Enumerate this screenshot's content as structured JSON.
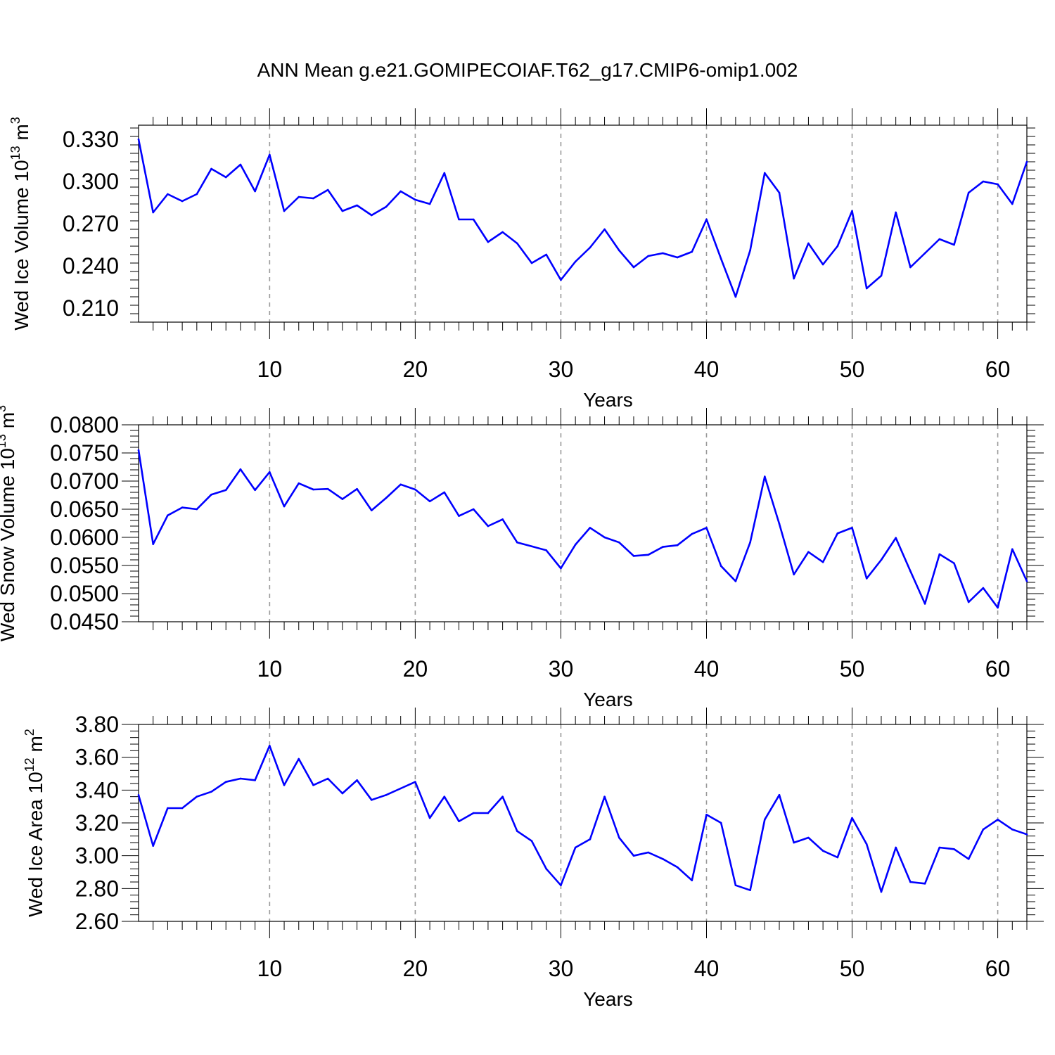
{
  "title": "ANN Mean g.e21.GOMIPECOIAF.T62_g17.CMIP6-omip1.002",
  "line_color": "#0000ff",
  "chart_data": [
    {
      "type": "line",
      "title": "",
      "xlabel": "Years",
      "ylabel": {
        "main": "Wed Ice Volume 10",
        "sup": "13",
        "mid": " m",
        "sup2": "3"
      },
      "xlim": [
        1,
        62
      ],
      "ylim": [
        0.2,
        0.34
      ],
      "yticks": [
        0.21,
        0.24,
        0.27,
        0.3,
        0.33
      ],
      "ytick_labels": [
        "0.210",
        "0.240",
        "0.270",
        "0.300",
        "0.330"
      ],
      "xticks": [
        10,
        20,
        30,
        40,
        50,
        60
      ],
      "xtick_labels": [
        "10",
        "20",
        "30",
        "40",
        "50",
        "60"
      ],
      "grid": "vertical dashed at major x ticks",
      "series": [
        {
          "x": [
            1,
            2,
            3,
            4,
            5,
            6,
            7,
            8,
            9,
            10,
            11,
            12,
            13,
            14,
            15,
            16,
            17,
            18,
            19,
            20,
            21,
            22,
            23,
            24,
            25,
            26,
            27,
            28,
            29,
            30,
            31,
            32,
            33,
            34,
            35,
            36,
            37,
            38,
            39,
            40,
            41,
            42,
            43,
            44,
            45,
            46,
            47,
            48,
            49,
            50,
            51,
            52,
            53,
            54,
            55,
            56,
            57,
            58,
            59,
            60,
            61,
            62
          ],
          "values": [
            0.33,
            0.278,
            0.291,
            0.286,
            0.291,
            0.309,
            0.303,
            0.312,
            0.293,
            0.319,
            0.279,
            0.289,
            0.288,
            0.294,
            0.279,
            0.283,
            0.276,
            0.282,
            0.293,
            0.287,
            0.284,
            0.306,
            0.273,
            0.273,
            0.257,
            0.264,
            0.256,
            0.242,
            0.248,
            0.23,
            0.243,
            0.253,
            0.266,
            0.251,
            0.239,
            0.247,
            0.249,
            0.246,
            0.25,
            0.273,
            0.245,
            0.218,
            0.251,
            0.306,
            0.292,
            0.231,
            0.256,
            0.241,
            0.254,
            0.279,
            0.224,
            0.233,
            0.278,
            0.239,
            0.249,
            0.259,
            0.255,
            0.292,
            0.3,
            0.298,
            0.284,
            0.314
          ]
        }
      ]
    },
    {
      "type": "line",
      "title": "",
      "xlabel": "Years",
      "ylabel": {
        "main": "Wed Snow Volume 10",
        "sup": "13",
        "mid": " m",
        "sup2": "3"
      },
      "xlim": [
        1,
        62
      ],
      "ylim": [
        0.045,
        0.08
      ],
      "yticks": [
        0.045,
        0.05,
        0.055,
        0.06,
        0.065,
        0.07,
        0.075,
        0.08
      ],
      "ytick_labels": [
        "0.0450",
        "0.0500",
        "0.0550",
        "0.0600",
        "0.0650",
        "0.0700",
        "0.0750",
        "0.0800"
      ],
      "xticks": [
        10,
        20,
        30,
        40,
        50,
        60
      ],
      "xtick_labels": [
        "10",
        "20",
        "30",
        "40",
        "50",
        "60"
      ],
      "grid": "vertical dashed at major x ticks",
      "series": [
        {
          "x": [
            1,
            2,
            3,
            4,
            5,
            6,
            7,
            8,
            9,
            10,
            11,
            12,
            13,
            14,
            15,
            16,
            17,
            18,
            19,
            20,
            21,
            22,
            23,
            24,
            25,
            26,
            27,
            28,
            29,
            30,
            31,
            32,
            33,
            34,
            35,
            36,
            37,
            38,
            39,
            40,
            41,
            42,
            43,
            44,
            45,
            46,
            47,
            48,
            49,
            50,
            51,
            52,
            53,
            54,
            55,
            56,
            57,
            58,
            59,
            60,
            61,
            62
          ],
          "values": [
            0.0755,
            0.0588,
            0.0639,
            0.0653,
            0.065,
            0.0676,
            0.0684,
            0.0721,
            0.0684,
            0.0716,
            0.0655,
            0.0696,
            0.0685,
            0.0686,
            0.0668,
            0.0686,
            0.0648,
            0.067,
            0.0694,
            0.0685,
            0.0664,
            0.068,
            0.0638,
            0.065,
            0.062,
            0.0632,
            0.0591,
            0.0584,
            0.0577,
            0.0545,
            0.0587,
            0.0617,
            0.06,
            0.0591,
            0.0567,
            0.0569,
            0.0583,
            0.0586,
            0.0606,
            0.0617,
            0.0549,
            0.0522,
            0.0591,
            0.0708,
            0.0624,
            0.0534,
            0.0574,
            0.0556,
            0.0607,
            0.0617,
            0.0527,
            0.056,
            0.0599,
            0.054,
            0.0482,
            0.057,
            0.0554,
            0.0485,
            0.051,
            0.0475,
            0.0579,
            0.0522
          ]
        }
      ]
    },
    {
      "type": "line",
      "title": "",
      "xlabel": "Years",
      "ylabel": {
        "main": "Wed Ice Area 10",
        "sup": "12",
        "mid": " m",
        "sup2": "2"
      },
      "xlim": [
        1,
        62
      ],
      "ylim": [
        2.6,
        3.8
      ],
      "yticks": [
        2.6,
        2.8,
        3.0,
        3.2,
        3.4,
        3.6,
        3.8
      ],
      "ytick_labels": [
        "2.60",
        "2.80",
        "3.00",
        "3.20",
        "3.40",
        "3.60",
        "3.80"
      ],
      "xticks": [
        10,
        20,
        30,
        40,
        50,
        60
      ],
      "xtick_labels": [
        "10",
        "20",
        "30",
        "40",
        "50",
        "60"
      ],
      "grid": "vertical dashed at major x ticks",
      "series": [
        {
          "x": [
            1,
            2,
            3,
            4,
            5,
            6,
            7,
            8,
            9,
            10,
            11,
            12,
            13,
            14,
            15,
            16,
            17,
            18,
            19,
            20,
            21,
            22,
            23,
            24,
            25,
            26,
            27,
            28,
            29,
            30,
            31,
            32,
            33,
            34,
            35,
            36,
            37,
            38,
            39,
            40,
            41,
            42,
            43,
            44,
            45,
            46,
            47,
            48,
            49,
            50,
            51,
            52,
            53,
            54,
            55,
            56,
            57,
            58,
            59,
            60,
            61,
            62
          ],
          "values": [
            3.37,
            3.06,
            3.29,
            3.29,
            3.36,
            3.39,
            3.45,
            3.47,
            3.46,
            3.67,
            3.43,
            3.59,
            3.43,
            3.47,
            3.38,
            3.46,
            3.34,
            3.37,
            3.41,
            3.45,
            3.23,
            3.36,
            3.21,
            3.26,
            3.26,
            3.36,
            3.15,
            3.09,
            2.92,
            2.82,
            3.05,
            3.1,
            3.36,
            3.11,
            3.0,
            3.02,
            2.98,
            2.93,
            2.85,
            3.25,
            3.2,
            2.82,
            2.79,
            3.22,
            3.37,
            3.08,
            3.11,
            3.03,
            2.99,
            3.23,
            3.07,
            2.78,
            3.05,
            2.84,
            2.83,
            3.05,
            3.04,
            2.98,
            3.16,
            3.22,
            3.16,
            3.13
          ]
        }
      ]
    }
  ]
}
